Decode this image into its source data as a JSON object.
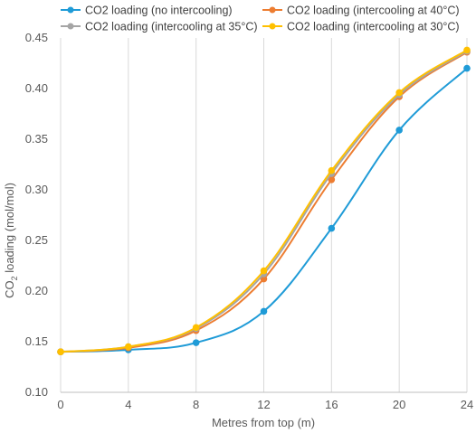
{
  "chart_data": {
    "type": "line",
    "title": "",
    "xlabel": "Metres from top (m)",
    "ylabel_prefix": "CO",
    "ylabel_subscript": "2",
    "ylabel_suffix": " loading (mol/mol)",
    "x": [
      0,
      4,
      8,
      12,
      16,
      20,
      24
    ],
    "xlim": [
      0,
      24
    ],
    "ylim": [
      0.1,
      0.45
    ],
    "x_ticks": [
      "0",
      "4",
      "8",
      "12",
      "16",
      "20",
      "24"
    ],
    "y_ticks": [
      "0.10",
      "0.15",
      "0.20",
      "0.25",
      "0.30",
      "0.35",
      "0.40",
      "0.45"
    ],
    "grid": "vertical",
    "legend_position": "top",
    "smooth": true,
    "series": [
      {
        "name": "CO2 loading (no intercooling)",
        "color": "#1F9BD7",
        "values": [
          0.14,
          0.142,
          0.149,
          0.18,
          0.262,
          0.359,
          0.42
        ]
      },
      {
        "name": "CO2 loading (intercooling at 40°C)",
        "color": "#ED7D31",
        "values": [
          0.14,
          0.144,
          0.161,
          0.212,
          0.31,
          0.392,
          0.436
        ]
      },
      {
        "name": "CO2 loading (intercooling at 35°C)",
        "color": "#A5A5A5",
        "values": [
          0.14,
          0.145,
          0.163,
          0.217,
          0.316,
          0.394,
          0.437
        ]
      },
      {
        "name": "CO2 loading (intercooling at 30°C)",
        "color": "#FFC000",
        "values": [
          0.14,
          0.145,
          0.164,
          0.22,
          0.319,
          0.396,
          0.438
        ]
      }
    ]
  }
}
